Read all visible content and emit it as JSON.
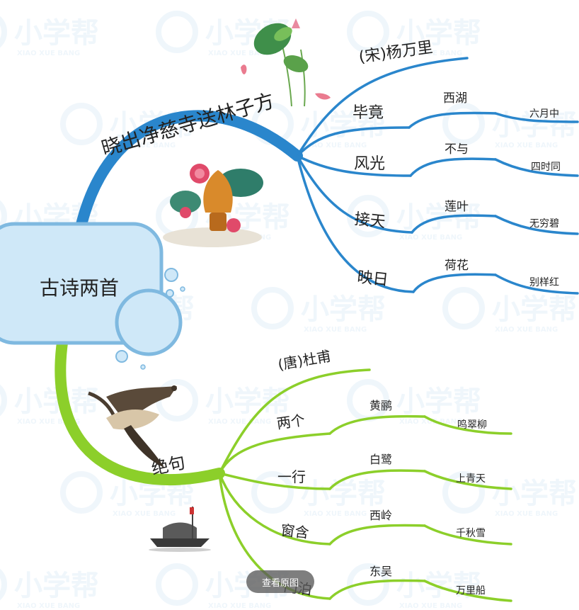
{
  "watermark": {
    "brand": "小学帮",
    "pinyin": "XIAO XUE BANG"
  },
  "center": {
    "label": "古诗两首"
  },
  "poem1": {
    "title": "晓出净慈寺送林子方",
    "author": "(宋)杨万里",
    "lines": [
      {
        "head": "毕竟",
        "mid": "西湖",
        "tail": "六月中"
      },
      {
        "head": "风光",
        "mid": "不与",
        "tail": "四时同"
      },
      {
        "head": "接天",
        "mid": "莲叶",
        "tail": "无穷碧"
      },
      {
        "head": "映日",
        "mid": "荷花",
        "tail": "别样红"
      }
    ],
    "color": "#2a86cc"
  },
  "poem2": {
    "title": "绝句",
    "author": "(唐)杜甫",
    "lines": [
      {
        "head": "两个",
        "mid": "黄鹂",
        "tail": "鸣翠柳"
      },
      {
        "head": "一行",
        "mid": "白鹭",
        "tail": "上青天"
      },
      {
        "head": "窗含",
        "mid": "西岭",
        "tail": "千秋雪"
      },
      {
        "head": "门泊",
        "mid": "东吴",
        "tail": "万里船"
      }
    ],
    "color": "#8ccf2a"
  },
  "view_button": {
    "label": "查看原图"
  }
}
